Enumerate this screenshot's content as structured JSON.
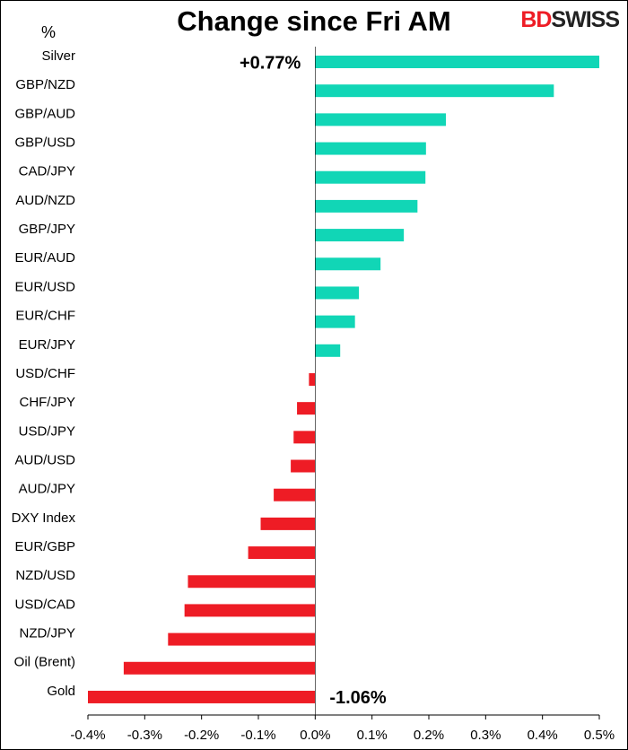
{
  "chart_data": {
    "type": "hbar",
    "title": "Change since Fri AM",
    "logo": {
      "parts": [
        "BD",
        "SWISS"
      ]
    },
    "y_axis_label": "%",
    "categories": [
      "Silver",
      "GBP/NZD",
      "GBP/AUD",
      "GBP/USD",
      "CAD/JPY",
      "AUD/NZD",
      "GBP/JPY",
      "EUR/AUD",
      "EUR/USD",
      "EUR/CHF",
      "EUR/JPY",
      "USD/CHF",
      "CHF/JPY",
      "USD/JPY",
      "AUD/USD",
      "AUD/JPY",
      "DXY Index",
      "EUR/GBP",
      "NZD/USD",
      "USD/CAD",
      "NZD/JPY",
      "Oil (Brent)",
      "Gold"
    ],
    "values": [
      0.77,
      0.42,
      0.23,
      0.195,
      0.194,
      0.18,
      0.156,
      0.115,
      0.077,
      0.07,
      0.044,
      -0.011,
      -0.032,
      -0.038,
      -0.043,
      -0.073,
      -0.096,
      -0.118,
      -0.224,
      -0.23,
      -0.259,
      -0.337,
      -1.06
    ],
    "value_labels": [
      "+0.77%",
      null,
      null,
      null,
      null,
      null,
      null,
      null,
      null,
      null,
      null,
      null,
      null,
      null,
      null,
      null,
      null,
      null,
      null,
      null,
      null,
      null,
      "-1.06%"
    ],
    "colors": {
      "positive": "#11d6b6",
      "negative": "#ee1c25"
    },
    "xlim": [
      -0.4,
      0.5
    ],
    "xticks": [
      {
        "value": -0.4,
        "label": "-0.4%"
      },
      {
        "value": -0.3,
        "label": "-0.3%"
      },
      {
        "value": -0.2,
        "label": "-0.2%"
      },
      {
        "value": -0.1,
        "label": "-0.1%"
      },
      {
        "value": 0,
        "label": "0.0%"
      },
      {
        "value": 0.1,
        "label": "0.1%"
      },
      {
        "value": 0.2,
        "label": "0.2%"
      },
      {
        "value": 0.3,
        "label": "0.3%"
      },
      {
        "value": 0.4,
        "label": "0.4%"
      },
      {
        "value": 0.5,
        "label": "0.5%"
      }
    ]
  }
}
